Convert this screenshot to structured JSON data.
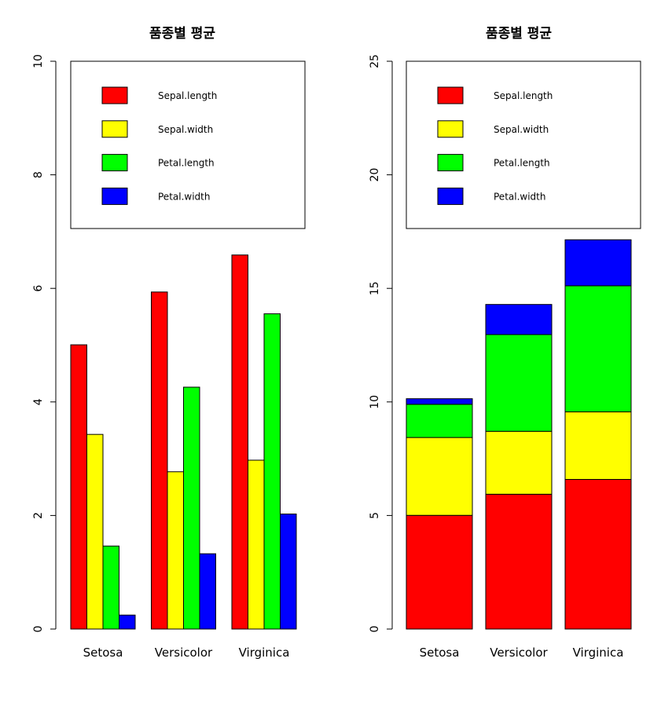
{
  "colors": {
    "Sepal.length": "#ff0000",
    "Sepal.width": "#ffff00",
    "Petal.length": "#00ff00",
    "Petal.width": "#0000ff"
  },
  "chart_data": [
    {
      "type": "bar",
      "mode": "grouped",
      "title": "품종별 평균",
      "categories": [
        "Setosa",
        "Versicolor",
        "Virginica"
      ],
      "series": [
        {
          "name": "Sepal.length",
          "values": [
            5.006,
            5.936,
            6.588
          ]
        },
        {
          "name": "Sepal.width",
          "values": [
            3.428,
            2.77,
            2.974
          ]
        },
        {
          "name": "Petal.length",
          "values": [
            1.462,
            4.26,
            5.552
          ]
        },
        {
          "name": "Petal.width",
          "values": [
            0.246,
            1.326,
            2.026
          ]
        }
      ],
      "ylim": [
        0,
        10
      ],
      "yticks": [
        0,
        2,
        4,
        6,
        8,
        10
      ],
      "legend_position": "top",
      "grid": false
    },
    {
      "type": "bar",
      "mode": "stacked",
      "title": "품종별 평균",
      "categories": [
        "Setosa",
        "Versicolor",
        "Virginica"
      ],
      "series": [
        {
          "name": "Sepal.length",
          "values": [
            5.006,
            5.936,
            6.588
          ]
        },
        {
          "name": "Sepal.width",
          "values": [
            3.428,
            2.77,
            2.974
          ]
        },
        {
          "name": "Petal.length",
          "values": [
            1.462,
            4.26,
            5.552
          ]
        },
        {
          "name": "Petal.width",
          "values": [
            0.246,
            1.326,
            2.026
          ]
        }
      ],
      "ylim": [
        0,
        25
      ],
      "yticks": [
        0,
        5,
        10,
        15,
        20,
        25
      ],
      "legend_position": "top",
      "grid": false
    }
  ]
}
